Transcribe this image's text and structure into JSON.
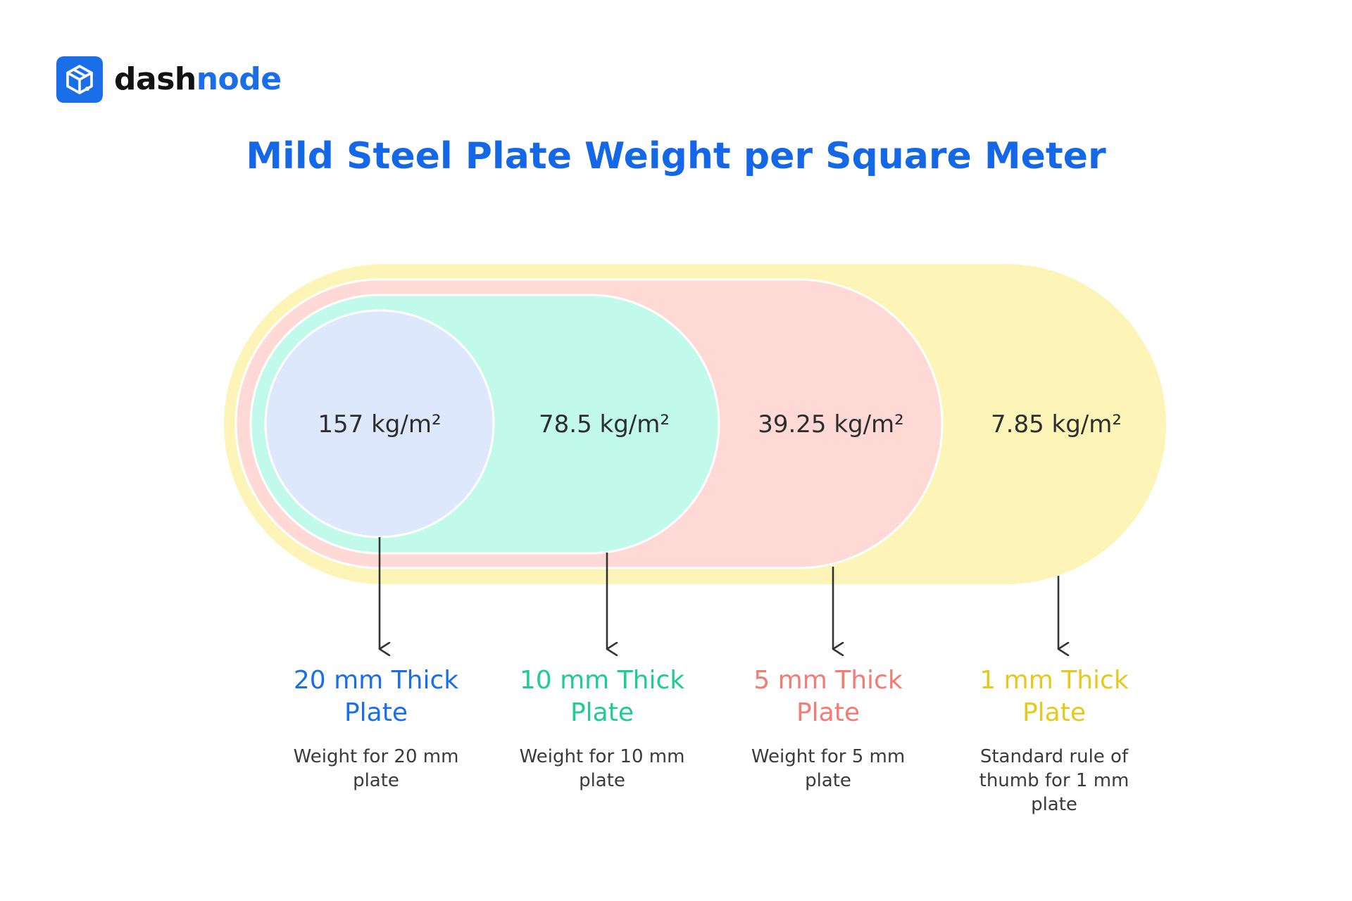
{
  "brand": {
    "name_part1": "dash",
    "name_part2": "node",
    "icon": "cube-icon",
    "accent": "#1a6fe8"
  },
  "title": "Mild Steel Plate Weight per Square Meter",
  "plates": [
    {
      "value_label": "157 kg/m²",
      "value": 157,
      "title": "20 mm Thick Plate",
      "title_line1": "20 mm Thick",
      "title_line2": "Plate",
      "description_line1": "Weight for 20 mm",
      "description_line2": "plate",
      "description_line3": "",
      "fill": "#dde8fc",
      "title_color": "#1a6fe8"
    },
    {
      "value_label": "78.5 kg/m²",
      "value": 78.5,
      "title": "10 mm Thick Plate",
      "title_line1": "10 mm Thick",
      "title_line2": "Plate",
      "description_line1": "Weight for 10 mm",
      "description_line2": "plate",
      "description_line3": "",
      "fill": "#c1f9ea",
      "title_color": "#1fcc93"
    },
    {
      "value_label": "39.25 kg/m²",
      "value": 39.25,
      "title": "5 mm Thick Plate",
      "title_line1": "5 mm Thick",
      "title_line2": "Plate",
      "description_line1": "Weight for 5 mm",
      "description_line2": "plate",
      "description_line3": "",
      "fill": "#ffd9d5",
      "title_color": "#f47c75"
    },
    {
      "value_label": "7.85 kg/m²",
      "value": 7.85,
      "title": "1 mm Thick Plate",
      "title_line1": "1 mm Thick",
      "title_line2": "Plate",
      "description_line1": "Standard rule of",
      "description_line2": "thumb for 1 mm",
      "description_line3": "plate",
      "fill": "#fdf5b7",
      "title_color": "#e5c91f"
    }
  ]
}
